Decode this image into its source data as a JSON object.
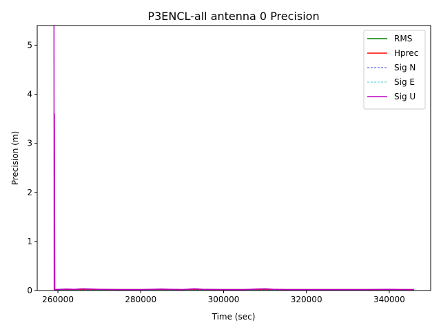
{
  "chart_data": {
    "type": "line",
    "title": "P3ENCL-all antenna 0 Precision",
    "xlabel": "Time (sec)",
    "ylabel": "Precision (m)",
    "xlim": [
      255000,
      350000
    ],
    "ylim": [
      0,
      5.4
    ],
    "x_ticks": [
      260000,
      280000,
      300000,
      320000,
      340000
    ],
    "y_ticks": [
      0,
      1,
      2,
      3,
      4,
      5
    ],
    "grid": false,
    "legend_position": "upper-right",
    "series": [
      {
        "name": "RMS",
        "color": "#008000",
        "style": "solid",
        "x": [
          259000,
          259300,
          270000,
          280000,
          290000,
          300000,
          310000,
          320000,
          330000,
          340000,
          346000
        ],
        "y": [
          0.02,
          0.02,
          0.02,
          0.02,
          0.02,
          0.02,
          0.02,
          0.02,
          0.02,
          0.02,
          0.02
        ]
      },
      {
        "name": "Hprec",
        "color": "#ff0000",
        "style": "solid",
        "x": [
          259000,
          259300,
          270000,
          280000,
          290000,
          300000,
          310000,
          320000,
          330000,
          340000,
          346000
        ],
        "y": [
          0.02,
          0.02,
          0.02,
          0.02,
          0.02,
          0.02,
          0.02,
          0.02,
          0.02,
          0.02,
          0.02
        ]
      },
      {
        "name": "Sig N",
        "color": "#0000cc",
        "style": "dashed",
        "x": [
          259000,
          259300,
          270000,
          280000,
          290000,
          300000,
          310000,
          320000,
          330000,
          340000,
          346000
        ],
        "y": [
          0.01,
          0.01,
          0.01,
          0.01,
          0.01,
          0.01,
          0.01,
          0.01,
          0.01,
          0.01,
          0.01
        ]
      },
      {
        "name": "Sig E",
        "color": "#00bfbf",
        "style": "dashed",
        "x": [
          259000,
          259300,
          270000,
          280000,
          290000,
          300000,
          310000,
          320000,
          330000,
          340000,
          346000
        ],
        "y": [
          0.01,
          0.01,
          0.01,
          0.01,
          0.01,
          0.01,
          0.01,
          0.01,
          0.01,
          0.01,
          0.01
        ]
      },
      {
        "name": "Sig U",
        "color": "#bf00bf",
        "style": "solid",
        "x": [
          259000,
          259050,
          259100,
          259150,
          259250,
          259350,
          262000,
          264000,
          266000,
          268000,
          270000,
          275000,
          280000,
          285000,
          287000,
          290000,
          293000,
          295000,
          300000,
          305000,
          308000,
          310000,
          312000,
          315000,
          320000,
          325000,
          330000,
          335000,
          340000,
          343000,
          346000
        ],
        "y": [
          5.4,
          5.4,
          0.02,
          3.6,
          0.02,
          0.02,
          0.03,
          0.025,
          0.035,
          0.03,
          0.025,
          0.02,
          0.02,
          0.03,
          0.025,
          0.02,
          0.035,
          0.025,
          0.02,
          0.02,
          0.03,
          0.035,
          0.025,
          0.02,
          0.02,
          0.02,
          0.02,
          0.02,
          0.025,
          0.02,
          0.02
        ]
      }
    ]
  }
}
